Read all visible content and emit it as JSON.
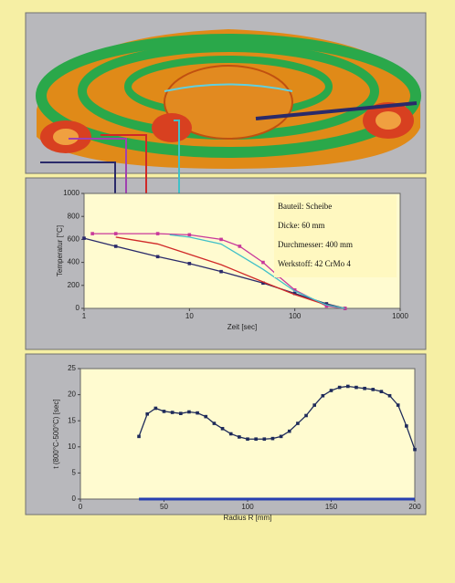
{
  "chart_data": [
    {
      "type": "line",
      "xlabel": "Zeit [sec]",
      "ylabel": "Temperatur [°C]",
      "xlog": true,
      "xlim": [
        1,
        1000
      ],
      "xticks": [
        1,
        10,
        100,
        1000
      ],
      "ylim": [
        0,
        1000
      ],
      "yticks": [
        0,
        200,
        400,
        600,
        800,
        1000
      ],
      "annotations": [
        "Bauteil: Scheibe",
        "Dicke: 60 mm",
        "Durchmesser: 400 mm",
        "Werkstoff: 42 CrMo 4"
      ],
      "series": [
        {
          "color": "#2a2a6a",
          "marker": true,
          "x": [
            1,
            2,
            5,
            10,
            20,
            50,
            100,
            200,
            300
          ],
          "values": [
            610,
            540,
            450,
            390,
            320,
            220,
            130,
            40,
            0
          ]
        },
        {
          "color": "#c8389a",
          "marker": true,
          "x": [
            1.2,
            2,
            5,
            10,
            20,
            30,
            50,
            70,
            100,
            200,
            300
          ],
          "values": [
            650,
            650,
            650,
            640,
            600,
            540,
            400,
            280,
            160,
            20,
            0
          ]
        },
        {
          "color": "#d02828",
          "marker": false,
          "x": [
            2,
            5,
            10,
            20,
            50,
            100,
            200,
            300
          ],
          "values": [
            620,
            560,
            470,
            380,
            230,
            120,
            30,
            0
          ]
        },
        {
          "color": "#40c0c8",
          "marker": false,
          "x": [
            6.5,
            10,
            20,
            50,
            100,
            200,
            300
          ],
          "values": [
            640,
            620,
            560,
            340,
            150,
            30,
            0
          ]
        }
      ]
    },
    {
      "type": "line",
      "xlabel": "Radius R [mm]",
      "ylabel": "t (800°C-500°C) [sec]",
      "xlim": [
        0,
        200
      ],
      "xticks": [
        0,
        50,
        100,
        150,
        200
      ],
      "ylim": [
        0,
        25
      ],
      "yticks": [
        0,
        5,
        10,
        15,
        20,
        25
      ],
      "series": [
        {
          "color": "#1e2a5a",
          "marker": true,
          "x": [
            35,
            40,
            45,
            50,
            55,
            60,
            65,
            70,
            75,
            80,
            85,
            90,
            95,
            100,
            105,
            110,
            115,
            120,
            125,
            130,
            135,
            140,
            145,
            150,
            155,
            160,
            165,
            170,
            175,
            180,
            185,
            190,
            195,
            200
          ],
          "values": [
            12,
            16.3,
            17.4,
            16.8,
            16.6,
            16.4,
            16.7,
            16.5,
            15.8,
            14.5,
            13.5,
            12.5,
            11.9,
            11.5,
            11.5,
            11.5,
            11.6,
            12,
            13,
            14.5,
            16,
            18,
            19.8,
            20.8,
            21.4,
            21.6,
            21.4,
            21.2,
            21,
            20.6,
            19.8,
            18,
            14,
            9.5
          ]
        },
        {
          "color": "#2840b0",
          "marker": false,
          "width": 3,
          "x": [
            35,
            200
          ],
          "values": [
            0,
            0
          ]
        }
      ]
    }
  ]
}
